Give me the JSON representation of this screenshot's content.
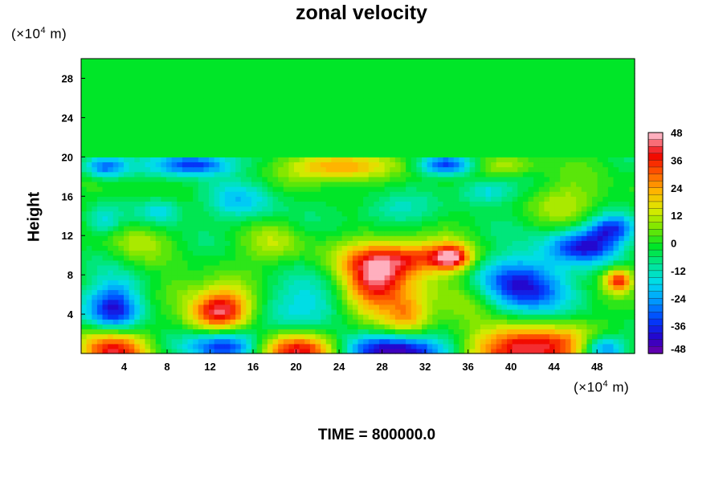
{
  "chart_data": {
    "type": "heatmap",
    "title": "zonal velocity",
    "ylabel": "Height",
    "y_unit": "(×10",
    "y_unit_exp": "4",
    "y_unit_tail": " m)",
    "x_unit": "(×10",
    "x_unit_exp": "4",
    "x_unit_tail": " m)",
    "xlim": [
      0,
      51.5
    ],
    "ylim": [
      0,
      30
    ],
    "x_ticks": [
      "4",
      "8",
      "12",
      "16",
      "20",
      "24",
      "28",
      "32",
      "36",
      "40",
      "44",
      "48"
    ],
    "y_ticks": [
      "4",
      "8",
      "12",
      "16",
      "20",
      "24",
      "28"
    ],
    "colorbar": {
      "range": [
        -48,
        48
      ],
      "tick_labels": [
        "48",
        "36",
        "24",
        "12",
        "0",
        "-12",
        "-24",
        "-36",
        "-48"
      ]
    },
    "background_value": 0,
    "features": [
      {
        "x": 3.2,
        "y": 0.8,
        "value": 48,
        "sx": 2.2,
        "sy": 1.8
      },
      {
        "x": 3.2,
        "y": 4.2,
        "value": -46,
        "sx": 1.8,
        "sy": 2.2
      },
      {
        "x": 13.0,
        "y": 4.5,
        "value": 44,
        "sx": 2.0,
        "sy": 1.5
      },
      {
        "x": 13.5,
        "y": 0.8,
        "value": -40,
        "sx": 2.6,
        "sy": 1.2
      },
      {
        "x": 20.5,
        "y": 0.4,
        "value": 42,
        "sx": 3.5,
        "sy": 1.3
      },
      {
        "x": 29.0,
        "y": 0.4,
        "value": -48,
        "sx": 3.8,
        "sy": 1.2
      },
      {
        "x": 42.0,
        "y": 0.6,
        "value": 48,
        "sx": 4.0,
        "sy": 1.6
      },
      {
        "x": 48.5,
        "y": 0.5,
        "value": -38,
        "sx": 1.5,
        "sy": 1.0
      },
      {
        "x": 27.3,
        "y": 7.2,
        "value": 46,
        "sx": 2.2,
        "sy": 2.4
      },
      {
        "x": 31.0,
        "y": 9.8,
        "value": 32,
        "sx": 3.5,
        "sy": 1.2
      },
      {
        "x": 34.5,
        "y": 9.8,
        "value": 34,
        "sx": 1.2,
        "sy": 0.9
      },
      {
        "x": 41.0,
        "y": 7.0,
        "value": -40,
        "sx": 2.8,
        "sy": 2.2
      },
      {
        "x": 47.0,
        "y": 11.0,
        "value": -34,
        "sx": 2.5,
        "sy": 1.2
      },
      {
        "x": 49.5,
        "y": 12.8,
        "value": -30,
        "sx": 1.6,
        "sy": 1.0
      },
      {
        "x": 50.0,
        "y": 7.5,
        "value": 36,
        "sx": 0.9,
        "sy": 0.8
      },
      {
        "x": 21.5,
        "y": 5.0,
        "value": -20,
        "sx": 2.5,
        "sy": 2.0
      },
      {
        "x": 23.8,
        "y": 19.0,
        "value": 30,
        "sx": 3.0,
        "sy": 1.0
      },
      {
        "x": 10.5,
        "y": 19.3,
        "value": -36,
        "sx": 2.5,
        "sy": 0.8
      },
      {
        "x": 2.2,
        "y": 19.0,
        "value": -30,
        "sx": 1.5,
        "sy": 0.8
      },
      {
        "x": 34.0,
        "y": 19.2,
        "value": -30,
        "sx": 1.8,
        "sy": 0.7
      },
      {
        "x": 39.5,
        "y": 19.0,
        "value": 14,
        "sx": 2.0,
        "sy": 0.8
      },
      {
        "x": 15.0,
        "y": 15.5,
        "value": -16,
        "sx": 2.5,
        "sy": 1.5
      },
      {
        "x": 7.5,
        "y": 14.5,
        "value": -18,
        "sx": 1.5,
        "sy": 1.0
      },
      {
        "x": 37.5,
        "y": 16.5,
        "value": -18,
        "sx": 1.8,
        "sy": 1.0
      },
      {
        "x": 45.5,
        "y": 15.5,
        "value": 12,
        "sx": 2.5,
        "sy": 1.5
      },
      {
        "x": 5.0,
        "y": 11.5,
        "value": 10,
        "sx": 2.0,
        "sy": 1.5
      },
      {
        "x": 18.0,
        "y": 11.0,
        "value": 12,
        "sx": 2.0,
        "sy": 1.5
      },
      {
        "x": 2.0,
        "y": 13.5,
        "value": -14,
        "sx": 1.2,
        "sy": 1.0
      },
      {
        "x": 28.5,
        "y": 14.5,
        "value": -12,
        "sx": 2.5,
        "sy": 1.2
      },
      {
        "x": 9.0,
        "y": 6.5,
        "value": 10,
        "sx": 1.5,
        "sy": 1.2
      },
      {
        "x": 36.0,
        "y": 5.0,
        "value": 14,
        "sx": 2.0,
        "sy": 2.0
      },
      {
        "x": 30.5,
        "y": 4.0,
        "value": 20,
        "sx": 1.5,
        "sy": 1.5
      }
    ],
    "time_label": "TIME = 800000.0"
  }
}
